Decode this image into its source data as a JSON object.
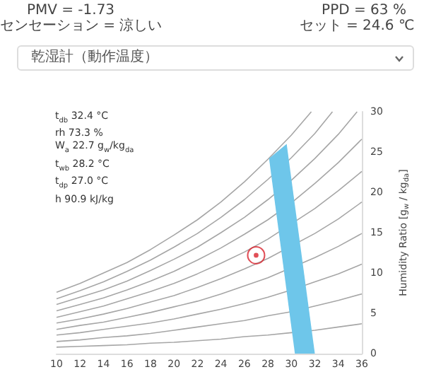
{
  "chart_data": {
    "type": "line",
    "ylabel": "Humidity Ratio [g$_{w}$ / kg$_{da}$]",
    "xlim": [
      10,
      36
    ],
    "xticks": [
      10,
      12,
      14,
      16,
      18,
      20,
      22,
      24,
      26,
      28,
      30,
      32,
      34,
      36
    ],
    "ylim": [
      0,
      30
    ],
    "yticks": [
      0,
      5,
      10,
      15,
      20,
      25,
      30
    ],
    "grid": false,
    "annotations": [
      "PMV = -1.73",
      "センセーション = 涼しい",
      "PPD = 63 %",
      "セット = 24.6 ℃",
      "乾湿計（動作温度）",
      "t$_{db}$ 32.4 °C",
      "rh 73.3 %",
      "W$_{a}$ 22.7 g$_{w}$/kg$_{da}$",
      "t$_{wb}$ 28.2 °C",
      "t$_{dp}$ 27.0 °C",
      "h 90.9 kJ/kg"
    ],
    "series": [
      {
        "type": "line",
        "color": "#a6a6a6",
        "marker": "none",
        "x": [
          10,
          12,
          14,
          16,
          18,
          20,
          22,
          24,
          26,
          28,
          30,
          32,
          34,
          36
        ],
        "values": [
          0.8,
          0.9,
          1.0,
          1.1,
          1.3,
          1.4,
          1.6,
          1.8,
          2.1,
          2.3,
          2.6,
          2.9,
          3.3,
          3.7
        ]
      },
      {
        "type": "line",
        "color": "#a6a6a6",
        "marker": "none",
        "x": [
          10,
          12,
          14,
          16,
          18,
          20,
          22,
          24,
          26,
          28,
          30,
          32,
          34,
          36
        ],
        "values": [
          1.5,
          1.7,
          2.0,
          2.2,
          2.5,
          2.9,
          3.3,
          3.7,
          4.1,
          4.7,
          5.2,
          5.9,
          6.6,
          7.4
        ]
      },
      {
        "type": "line",
        "color": "#a6a6a6",
        "marker": "none",
        "x": [
          10,
          12,
          14,
          16,
          18,
          20,
          22,
          24,
          26,
          28,
          30,
          32,
          34,
          36
        ],
        "values": [
          2.3,
          2.6,
          3.0,
          3.4,
          3.8,
          4.3,
          4.9,
          5.5,
          6.2,
          7.0,
          7.9,
          8.9,
          9.9,
          11.1
        ]
      },
      {
        "type": "line",
        "color": "#a6a6a6",
        "marker": "none",
        "x": [
          10,
          12,
          14,
          16,
          18,
          20,
          22,
          24,
          26,
          28,
          30,
          32,
          34,
          36
        ],
        "values": [
          3.0,
          3.5,
          3.9,
          4.5,
          5.1,
          5.8,
          6.5,
          7.4,
          8.4,
          9.4,
          null,
          11.9,
          13.3,
          14.9
        ]
      },
      {
        "type": "line",
        "color": "#a6a6a6",
        "marker": "none",
        "x": [
          10,
          12,
          14,
          16,
          18,
          20,
          22,
          24,
          26,
          28,
          30,
          32,
          34,
          36
        ],
        "values": [
          3.8,
          4.3,
          4.9,
          5.6,
          6.4,
          7.2,
          8.2,
          9.3,
          10.5,
          11.8,
          null,
          14.9,
          16.7,
          18.8
        ]
      },
      {
        "type": "line",
        "color": "#a6a6a6",
        "marker": "none",
        "x": [
          10,
          12,
          14,
          16,
          18,
          20,
          22,
          24,
          26,
          28,
          30,
          32,
          34,
          36
        ],
        "values": [
          4.5,
          5.2,
          5.9,
          6.8,
          7.7,
          8.7,
          9.9,
          11.2,
          12.6,
          14.2,
          null,
          18.0,
          20.2,
          22.6
        ]
      },
      {
        "type": "line",
        "color": "#a6a6a6",
        "marker": "none",
        "x": [
          10,
          12,
          14,
          16,
          18,
          20,
          22,
          24,
          26,
          28,
          30,
          32,
          34,
          36
        ],
        "values": [
          5.3,
          6.1,
          6.9,
          7.9,
          9.0,
          10.2,
          11.6,
          13.1,
          14.8,
          16.6,
          18.7,
          21.1,
          23.7,
          26.6
        ]
      },
      {
        "type": "line",
        "color": "#a6a6a6",
        "marker": "none",
        "x": [
          10,
          12,
          14,
          16,
          18,
          20,
          22,
          24,
          26,
          28,
          30,
          32,
          34,
          35.6
        ],
        "values": [
          6.1,
          7.0,
          7.9,
          9.0,
          10.3,
          11.7,
          13.2,
          15.0,
          16.9,
          19.1,
          21.5,
          24.2,
          27.2,
          30.0
        ]
      },
      {
        "type": "line",
        "color": "#a6a6a6",
        "marker": "none",
        "x": [
          10,
          12,
          14,
          16,
          18,
          20,
          22,
          24,
          26,
          28,
          30,
          32,
          33.5
        ],
        "values": [
          6.8,
          7.8,
          8.9,
          10.2,
          11.6,
          13.2,
          14.9,
          16.9,
          19.1,
          21.6,
          24.3,
          27.3,
          30.0
        ]
      },
      {
        "type": "line",
        "color": "#a6a6a6",
        "marker": "none",
        "x": [
          10,
          12,
          14,
          16,
          18,
          20,
          22,
          24,
          26,
          28,
          30,
          31.7
        ],
        "values": [
          7.6,
          8.7,
          10.0,
          11.3,
          12.9,
          14.7,
          16.6,
          18.8,
          21.3,
          24.1,
          27.1,
          30.0
        ]
      },
      {
        "type": "area",
        "color": "#6ec6ea",
        "x": [
          28.1,
          29.6,
          32.0,
          30.3
        ],
        "values": [
          24.2,
          26.0,
          0,
          0
        ]
      },
      {
        "type": "scatter",
        "color": "#d9232d",
        "marker": "circle",
        "x": [
          27.0
        ],
        "values": [
          12.2
        ]
      }
    ]
  }
}
